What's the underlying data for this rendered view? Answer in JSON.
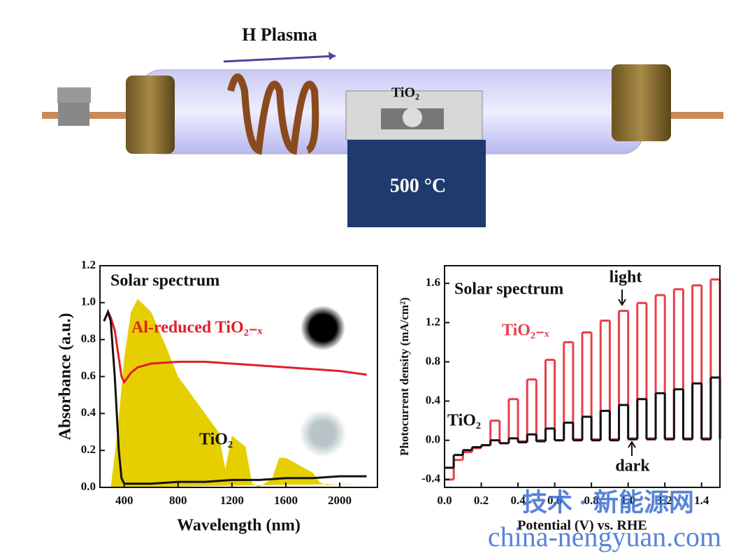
{
  "diagram": {
    "plasma_label": "H Plasma",
    "sample_label": "TiO₂",
    "furnace_label": "500 °C"
  },
  "chart_data": [
    {
      "type": "line",
      "xlabel": "Wavelength (nm)",
      "ylabel": "Absorbance (a.u.)",
      "xlim": [
        220,
        2280
      ],
      "xticks": [
        400,
        800,
        1200,
        1600,
        2000
      ],
      "ylim": [
        0,
        1.2
      ],
      "yticks": [
        {
          "value": 0,
          "label": "0.0"
        },
        0.2,
        0.4,
        0.6,
        0.8,
        {
          "value": 1,
          "label": "1.0"
        },
        1.2
      ],
      "series": [
        {
          "name": "Solar spectrum",
          "type": "area",
          "color": "#e6cf00",
          "x": [
            300,
            350,
            400,
            450,
            500,
            600,
            700,
            800,
            900,
            1000,
            1100,
            1150,
            1200,
            1300,
            1350,
            1400,
            1500,
            1550,
            1600,
            1700,
            1800,
            1850,
            1900,
            2000,
            2200
          ],
          "values": [
            0,
            0.3,
            0.7,
            0.95,
            1.02,
            0.95,
            0.78,
            0.6,
            0.5,
            0.4,
            0.3,
            0.1,
            0.28,
            0.22,
            0.02,
            0,
            0.05,
            0.16,
            0.16,
            0.12,
            0.08,
            0.03,
            0.01,
            0.02,
            0.02
          ]
        },
        {
          "name": "Al-reduced TiO₂₋ₓ",
          "type": "line",
          "color": "#e01e28",
          "x": [
            250,
            280,
            300,
            330,
            360,
            380,
            400,
            450,
            500,
            600,
            800,
            1000,
            1200,
            1400,
            1600,
            1800,
            2000,
            2200
          ],
          "values": [
            0.9,
            0.95,
            0.92,
            0.85,
            0.7,
            0.6,
            0.57,
            0.62,
            0.65,
            0.67,
            0.68,
            0.68,
            0.67,
            0.66,
            0.65,
            0.64,
            0.63,
            0.61
          ]
        },
        {
          "name": "TiO₂",
          "type": "line",
          "color": "#111111",
          "x": [
            250,
            280,
            300,
            330,
            360,
            380,
            400,
            450,
            500,
            600,
            800,
            1000,
            1200,
            1400,
            1600,
            1800,
            2000,
            2200
          ],
          "values": [
            0.9,
            0.95,
            0.9,
            0.6,
            0.2,
            0.05,
            0.02,
            0.02,
            0.02,
            0.02,
            0.03,
            0.03,
            0.04,
            0.04,
            0.05,
            0.05,
            0.06,
            0.06
          ]
        }
      ]
    },
    {
      "type": "line",
      "step": true,
      "xlabel": "Potential (V) vs. RHE",
      "ylabel": "Photocurrent density (mA/cm²)",
      "annotations": [
        "Solar spectrum",
        "light",
        "dark"
      ],
      "xlim": [
        0,
        1.5
      ],
      "xticks": [
        {
          "value": 0,
          "label": "0.0"
        },
        0.2,
        0.4,
        0.6,
        0.8,
        {
          "value": 1,
          "label": "1.0"
        },
        1.2,
        1.4
      ],
      "ylim": [
        -0.48,
        1.78
      ],
      "yticks": [
        -0.4,
        {
          "value": 0,
          "label": "0.0"
        },
        0.4,
        0.8,
        1.2,
        1.6
      ],
      "x": [
        0,
        0.05,
        0.1,
        0.15,
        0.2,
        0.25,
        0.3,
        0.35,
        0.4,
        0.45,
        0.5,
        0.55,
        0.6,
        0.65,
        0.7,
        0.75,
        0.8,
        0.85,
        0.9,
        0.95,
        1,
        1.05,
        1.1,
        1.15,
        1.2,
        1.25,
        1.3,
        1.35,
        1.4,
        1.45,
        1.5
      ],
      "series": [
        {
          "name": "TiO₂₋ₓ",
          "color": "#e8404a",
          "values": [
            -0.4,
            -0.2,
            -0.12,
            -0.08,
            -0.05,
            0.2,
            -0.03,
            0.42,
            -0.01,
            0.62,
            0,
            0.82,
            0,
            1,
            0.01,
            1.1,
            0.01,
            1.22,
            0.01,
            1.32,
            0.02,
            1.4,
            0.02,
            1.48,
            0.02,
            1.54,
            0.02,
            1.58,
            0.02,
            1.64,
            0.02
          ]
        },
        {
          "name": "TiO₂",
          "color": "#111111",
          "values": [
            -0.28,
            -0.15,
            -0.1,
            -0.07,
            -0.05,
            0,
            -0.03,
            0.02,
            -0.02,
            0.06,
            -0.01,
            0.12,
            0,
            0.18,
            0,
            0.24,
            0,
            0.3,
            0,
            0.36,
            0.01,
            0.42,
            0.01,
            0.48,
            0.01,
            0.52,
            0.01,
            0.58,
            0.01,
            0.64,
            0.01
          ]
        }
      ]
    }
  ],
  "watermark": [
    "技术 · 新能源网",
    "china-nengyuan.com"
  ]
}
